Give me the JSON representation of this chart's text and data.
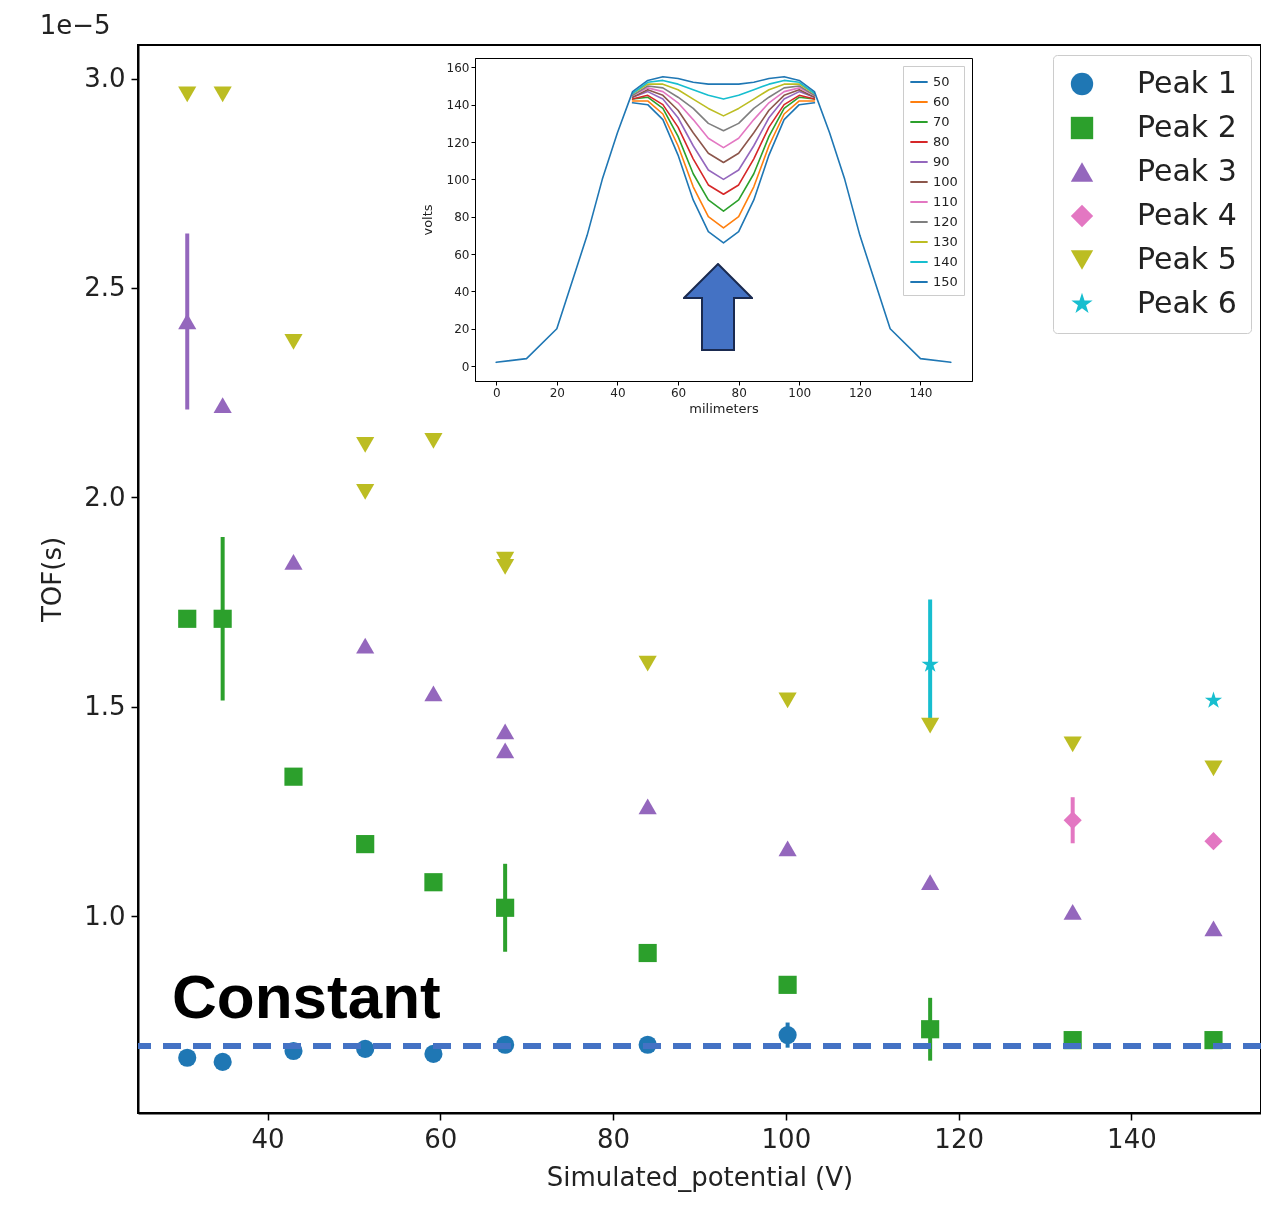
{
  "chart_data": [
    {
      "type": "scatter",
      "xlabel": "Simulated_potential (V)",
      "ylabel": "TOF(s)",
      "annotations": [
        "1e−5"
      ],
      "xlim": [
        25,
        155
      ],
      "xticks": [
        40,
        60,
        80,
        100,
        120,
        140
      ],
      "ylim": [
        0.53,
        3.08
      ],
      "yticks": [
        {
          "value": 1,
          "label": "1.0"
        },
        1.5,
        {
          "value": 2,
          "label": "2.0"
        },
        2.5,
        {
          "value": 3,
          "label": "3.0"
        }
      ],
      "legend": "top right",
      "ref_lines": [
        {
          "axis": "y",
          "value": 0.69,
          "label": "Constant",
          "color": "#4472c4",
          "line_style": "dashed"
        }
      ],
      "series": [
        {
          "name": "Peak 1",
          "color": "#1f77b4",
          "marker": "circle",
          "x": [
            30.7,
            34.8,
            43,
            51.3,
            59.2,
            67.5,
            84,
            100.2
          ],
          "values": [
            0.662,
            0.652,
            0.678,
            0.683,
            0.671,
            0.693,
            0.693,
            0.716
          ],
          "errors": [
            null,
            null,
            null,
            null,
            null,
            null,
            null,
            0.03
          ]
        },
        {
          "name": "Peak 2",
          "color": "#2ca02c",
          "marker": "square",
          "x": [
            30.7,
            34.8,
            43,
            51.3,
            59.2,
            67.5,
            84,
            100.2,
            116.7,
            133.2,
            149.5
          ],
          "values": [
            1.71,
            1.71,
            1.333,
            1.172,
            1.081,
            1.02,
            0.912,
            0.836,
            0.73,
            0.704,
            0.704
          ],
          "errors": [
            null,
            0.195,
            null,
            null,
            null,
            0.105,
            null,
            null,
            0.075,
            null,
            null
          ]
        },
        {
          "name": "Peak 3",
          "color": "#9467bd",
          "marker": "triangle",
          "x": [
            30.7,
            34.8,
            43,
            51.3,
            59.2,
            67.5,
            67.5,
            84,
            100.2,
            116.7,
            133.2,
            149.5
          ],
          "values": [
            2.42,
            2.22,
            1.846,
            1.646,
            1.532,
            1.441,
            1.396,
            1.262,
            1.162,
            1.081,
            1.01,
            0.971
          ],
          "errors": [
            0.21,
            null,
            null,
            null,
            null,
            null,
            null,
            null,
            null,
            null,
            null,
            null
          ]
        },
        {
          "name": "Peak 4",
          "color": "#e377c2",
          "marker": "diamond",
          "x": [
            133.2,
            149.5
          ],
          "values": [
            1.229,
            1.179
          ],
          "errors": [
            0.055,
            null
          ]
        },
        {
          "name": "Peak 5",
          "color": "#bcbd22",
          "marker": "triangle-down",
          "x": [
            30.7,
            34.8,
            43,
            51.3,
            51.3,
            59.2,
            67.5,
            67.5,
            84,
            100.2,
            116.7,
            133.2,
            149.5
          ],
          "values": [
            2.962,
            2.962,
            2.371,
            2.125,
            2.013,
            2.135,
            1.851,
            1.834,
            1.603,
            1.515,
            1.455,
            1.41,
            1.353
          ]
        },
        {
          "name": "Peak 6",
          "color": "#17becf",
          "marker": "star",
          "x": [
            116.7,
            149.5
          ],
          "values": [
            1.601,
            1.515
          ],
          "errors": [
            0.155,
            null
          ]
        }
      ]
    },
    {
      "type": "line",
      "xlabel": "milimeters",
      "ylabel": "volts",
      "xlim": [
        -7,
        157
      ],
      "xticks": [
        0,
        20,
        40,
        60,
        80,
        100,
        120,
        140
      ],
      "ylim": [
        -8,
        165
      ],
      "yticks": [
        0,
        20,
        40,
        60,
        80,
        100,
        120,
        140,
        160
      ],
      "legend": "top right",
      "line_style": "solid",
      "x": [
        0,
        10,
        20,
        30,
        35,
        40,
        45,
        50,
        55,
        60,
        65,
        70,
        75,
        80,
        85,
        90,
        95,
        100,
        105,
        110,
        115,
        120,
        130,
        140,
        150
      ],
      "series": [
        {
          "name": "50",
          "color": "#1f77b4",
          "values": [
            null,
            null,
            null,
            null,
            null,
            null,
            141,
            140,
            132,
            113,
            89,
            72,
            66,
            72,
            89,
            113,
            132,
            140,
            141,
            null,
            null,
            null,
            null,
            null,
            null
          ]
        },
        {
          "name": "60",
          "color": "#ff7f0e",
          "values": [
            null,
            null,
            null,
            null,
            null,
            null,
            142,
            142,
            135,
            118,
            96,
            80,
            74,
            80,
            96,
            118,
            135,
            142,
            142,
            null,
            null,
            null,
            null,
            null,
            null
          ]
        },
        {
          "name": "70",
          "color": "#2ca02c",
          "values": [
            null,
            null,
            null,
            null,
            null,
            null,
            143,
            144,
            138,
            123,
            103,
            89,
            83,
            89,
            103,
            123,
            138,
            144,
            143,
            null,
            null,
            null,
            null,
            null,
            null
          ]
        },
        {
          "name": "80",
          "color": "#d62728",
          "values": [
            null,
            null,
            null,
            null,
            null,
            null,
            143,
            145,
            140,
            128,
            111,
            97,
            92,
            97,
            111,
            128,
            140,
            145,
            143,
            null,
            null,
            null,
            null,
            null,
            null
          ]
        },
        {
          "name": "90",
          "color": "#9467bd",
          "values": [
            null,
            null,
            null,
            null,
            null,
            null,
            144,
            147,
            143,
            133,
            118,
            105,
            100,
            105,
            118,
            133,
            143,
            147,
            144,
            null,
            null,
            null,
            null,
            null,
            null
          ]
        },
        {
          "name": "100",
          "color": "#8c564b",
          "values": [
            null,
            null,
            null,
            null,
            null,
            null,
            144,
            148,
            145,
            137,
            125,
            114,
            109,
            114,
            125,
            137,
            145,
            148,
            144,
            null,
            null,
            null,
            null,
            null,
            null
          ]
        },
        {
          "name": "110",
          "color": "#e377c2",
          "values": [
            null,
            null,
            null,
            null,
            null,
            null,
            145,
            149,
            147,
            141,
            132,
            122,
            117,
            122,
            132,
            141,
            147,
            149,
            145,
            null,
            null,
            null,
            null,
            null,
            null
          ]
        },
        {
          "name": "120",
          "color": "#7f7f7f",
          "values": [
            null,
            null,
            null,
            null,
            null,
            null,
            145,
            150,
            149,
            144,
            138,
            130,
            126,
            130,
            138,
            144,
            149,
            150,
            145,
            null,
            null,
            null,
            null,
            null,
            null
          ]
        },
        {
          "name": "130",
          "color": "#bcbd22",
          "values": [
            null,
            null,
            null,
            null,
            null,
            null,
            146,
            151,
            151,
            148,
            143,
            138,
            134,
            138,
            143,
            148,
            151,
            151,
            146,
            null,
            null,
            null,
            null,
            null,
            null
          ]
        },
        {
          "name": "140",
          "color": "#17becf",
          "values": [
            null,
            null,
            null,
            null,
            null,
            null,
            146,
            152,
            153,
            151,
            148,
            145,
            143,
            145,
            148,
            151,
            153,
            152,
            146,
            null,
            null,
            null,
            null,
            null,
            null
          ]
        },
        {
          "name": "150",
          "color": "#1f77b4",
          "values": [
            2,
            4,
            20,
            70,
            100,
            125,
            147,
            153,
            155,
            154,
            152,
            151,
            151,
            151,
            152,
            154,
            155,
            153,
            147,
            125,
            100,
            70,
            20,
            4,
            2
          ]
        }
      ]
    }
  ]
}
